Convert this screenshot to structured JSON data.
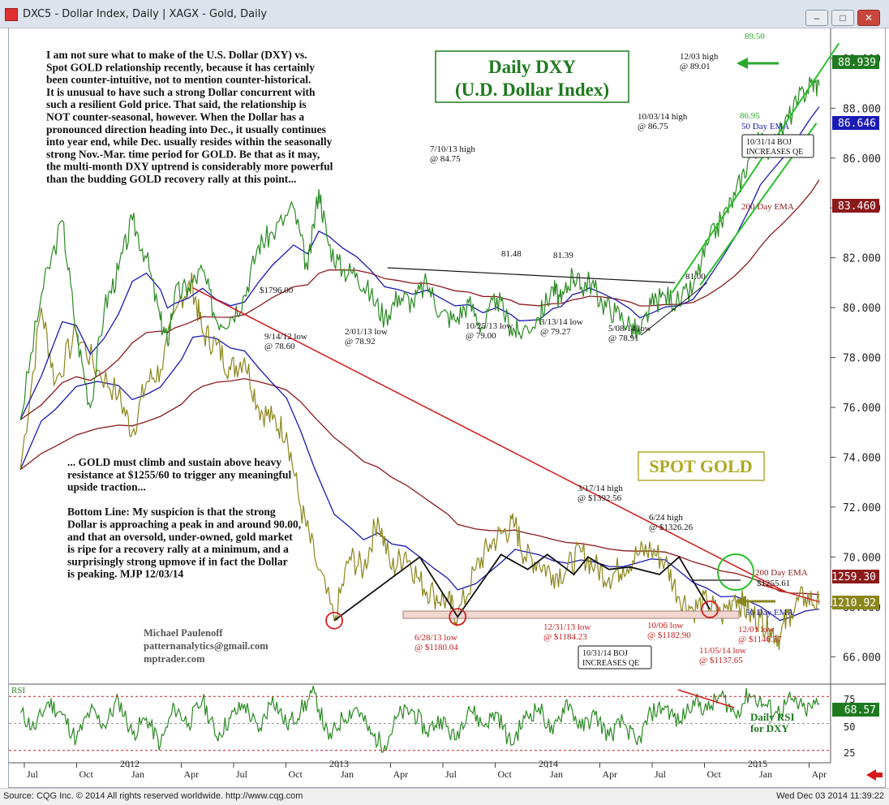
{
  "window": {
    "title": "DXC5 - Dollar Index, Daily   |   XAGX - Gold, Daily",
    "controls": [
      "min",
      "max",
      "close"
    ]
  },
  "commentary": {
    "top": [
      "I am not sure what to make of the U.S. Dollar (DXY) vs.",
      "Spot GOLD relationship recently, because it has certainly",
      "been counter-intuitive, not to mention counter-historical.",
      "It is unusual to have such a strong Dollar concurrent with",
      "such a resilient Gold price. That said, the relationship is",
      "NOT counter-seasonal, however. When the Dollar has a",
      "pronounced direction heading into Dec., it usually continues",
      "into year end, while Dec. usually resides within the seasonally",
      "strong Nov.-Mar. time period for GOLD. Be that as it may,",
      "the multi-month DXY uptrend is considerably more powerful",
      "than the budding GOLD recovery rally at this point..."
    ],
    "bottom": [
      "... GOLD must climb and sustain above heavy",
      "resistance at $1255/60 to trigger any meaningful",
      "upside traction...",
      "",
      "Bottom Line: My suspicion is that the strong",
      "Dollar is approaching a peak in and around 90.00,",
      "and that an oversold, under-owned, gold market",
      "is ripe for a recovery rally at a minimum, and a",
      "surprisingly strong upmove if in fact the Dollar",
      "is peaking.  MJP 12/03/14"
    ],
    "author": [
      "Michael Paulenoff",
      "patternanalytics@gmail.com",
      "mptrader.com"
    ]
  },
  "chart_data": {
    "type": "line",
    "y_axis_ticks": [
      66,
      68,
      70,
      72,
      74,
      76,
      78,
      80,
      82,
      84,
      86,
      88,
      90
    ],
    "y_tick_labels": [
      "66.000",
      "68.000",
      "70.000",
      "72.000",
      "74.000",
      "76.000",
      "78.000",
      "80.000",
      "82.000",
      "84.000",
      "86.000",
      "88.000",
      "90.000"
    ],
    "ylim": [
      65,
      91.2
    ],
    "x_months": [
      "Jul",
      "Oct",
      "Jan",
      "Apr",
      "Jul",
      "Oct",
      "Jan",
      "Apr",
      "Jul",
      "Oct",
      "Jan",
      "Apr",
      "Jul",
      "Oct",
      "Jan",
      "Apr"
    ],
    "x_years": [
      "2012",
      "2013",
      "2014",
      "2015"
    ],
    "dxy": {
      "name": "Daily DXY",
      "title_lines": [
        "Daily DXY",
        "(U.D. Dollar Index)"
      ],
      "color": "#2a8a22",
      "points": [
        [
          0,
          75.5
        ],
        [
          1.5,
          80.5
        ],
        [
          3,
          83.5
        ],
        [
          4,
          79
        ],
        [
          5,
          76
        ],
        [
          6,
          80
        ],
        [
          7,
          81.5
        ],
        [
          8,
          83.5
        ],
        [
          9,
          82
        ],
        [
          10,
          79.5
        ],
        [
          10.5,
          78.6
        ],
        [
          11,
          80.5
        ],
        [
          12,
          80.8
        ],
        [
          13,
          81.5
        ],
        [
          14,
          79.5
        ],
        [
          15,
          79.6
        ],
        [
          16,
          80.5
        ],
        [
          17,
          82.5
        ],
        [
          18,
          83
        ],
        [
          19.5,
          84
        ],
        [
          20.5,
          81.5
        ],
        [
          21.3,
          84.75
        ],
        [
          22,
          82.5
        ],
        [
          23,
          81.5
        ],
        [
          24,
          81.4
        ],
        [
          25,
          80.5
        ],
        [
          26,
          79.6
        ],
        [
          27,
          80.5
        ],
        [
          28,
          80.2
        ],
        [
          29,
          81
        ],
        [
          30,
          79.8
        ],
        [
          31,
          79.5
        ],
        [
          32,
          80.2
        ],
        [
          33,
          79.2
        ],
        [
          34,
          80.4
        ],
        [
          35,
          79.2
        ],
        [
          35.6,
          79.0
        ],
        [
          37,
          79.6
        ],
        [
          38,
          80.8
        ],
        [
          38.6,
          80.2
        ],
        [
          39.4,
          81.4
        ],
        [
          40,
          80.8
        ],
        [
          40.6,
          81.1
        ],
        [
          41.5,
          80.2
        ],
        [
          42.5,
          79.8
        ],
        [
          43.5,
          79.3
        ],
        [
          44.2,
          78.91
        ],
        [
          45,
          80.1
        ],
        [
          46,
          80.5
        ],
        [
          47,
          80.2
        ],
        [
          48,
          80.8
        ],
        [
          49,
          82.5
        ],
        [
          50,
          83.5
        ],
        [
          51,
          84.5
        ],
        [
          52,
          86
        ],
        [
          52.8,
          86.75
        ],
        [
          53.5,
          86.3
        ],
        [
          54.5,
          87.3
        ],
        [
          55.5,
          88.3
        ],
        [
          56.4,
          89.01
        ],
        [
          57,
          88.9
        ]
      ],
      "ema50": {
        "label": "50 Day EMA",
        "value": "86.646",
        "color": "#1a1ab4"
      },
      "ema200": {
        "label": "200 Day EMA",
        "value": "83.460",
        "color": "#8b1a1a"
      },
      "last": {
        "value": "88.939",
        "color": "#1f7a1f"
      },
      "channel_labels": [
        "89.50",
        "86.95"
      ],
      "annotations": [
        {
          "text": "12/03 high",
          "sub": "@ 89.01"
        },
        {
          "text": "10/03/14 high",
          "sub": "@ 86.75"
        },
        {
          "text": "7/10/13 high",
          "sub": "@ 84.75"
        },
        {
          "text": "81.48"
        },
        {
          "text": "81.39"
        },
        {
          "text": "81.00"
        },
        {
          "text": "10/25/13 low",
          "sub": "@ 79.00"
        },
        {
          "text": "3/13/14 low",
          "sub": "@ 79.27"
        },
        {
          "text": "5/08/14 low",
          "sub": "@ 78.91"
        },
        {
          "text": "2/01/13 low",
          "sub": "@ 78.92"
        },
        {
          "text": "9/14/12 low",
          "sub": "@ 78.60"
        },
        {
          "text": "10/31/14 BOJ",
          "sub": "INCREASES QE"
        }
      ]
    },
    "gold": {
      "name": "SPOT GOLD",
      "color": "#8a861c",
      "points": [
        [
          0,
          73.5
        ],
        [
          1.5,
          80
        ],
        [
          2.5,
          77
        ],
        [
          4,
          79
        ],
        [
          5.5,
          77.5
        ],
        [
          7,
          76.5
        ],
        [
          8,
          75
        ],
        [
          9,
          77
        ],
        [
          10,
          77.5
        ],
        [
          11.5,
          80.5
        ],
        [
          12.3,
          80.9
        ],
        [
          13,
          79
        ],
        [
          14,
          78.5
        ],
        [
          15,
          77.5
        ],
        [
          16,
          78
        ],
        [
          17,
          76
        ],
        [
          18,
          75.5
        ],
        [
          19,
          75
        ],
        [
          20,
          72
        ],
        [
          21,
          70
        ],
        [
          22.4,
          67.45
        ],
        [
          23.5,
          70
        ],
        [
          24.5,
          69.5
        ],
        [
          25.5,
          71.6
        ],
        [
          26.5,
          69.5
        ],
        [
          27.5,
          70.2
        ],
        [
          28.5,
          69
        ],
        [
          29.5,
          68.5
        ],
        [
          30.5,
          68.2
        ],
        [
          31.2,
          67.6
        ],
        [
          32.5,
          69.5
        ],
        [
          33.5,
          70.5
        ],
        [
          34.5,
          71
        ],
        [
          35.3,
          71.3
        ],
        [
          36,
          70
        ],
        [
          37,
          69.8
        ],
        [
          38,
          69.3
        ],
        [
          39,
          69.5
        ],
        [
          40,
          70.2
        ],
        [
          41,
          69.6
        ],
        [
          42,
          69.2
        ],
        [
          43,
          69.6
        ],
        [
          44,
          70.1
        ],
        [
          45,
          70.3
        ],
        [
          46,
          69.8
        ],
        [
          47,
          68.4
        ],
        [
          48,
          67.9
        ],
        [
          49,
          68.2
        ],
        [
          50,
          67.6
        ],
        [
          51,
          68.5
        ],
        [
          52,
          67.7
        ],
        [
          52.8,
          67.55
        ],
        [
          53.5,
          67.1
        ],
        [
          54.2,
          66.8
        ],
        [
          55,
          67.9
        ],
        [
          56,
          68.4
        ],
        [
          57,
          68.1
        ]
      ],
      "ema50": {
        "label": "50 Day EMA",
        "value": "1210.92",
        "color": "#1a1ab4"
      },
      "ema200": {
        "label": "200 Day EMA",
        "value": "1259.30",
        "color": "#8b1a1a"
      },
      "resistance": {
        "label": "$1255.61"
      },
      "annotations": [
        {
          "text": "3/17/14 high",
          "sub": "@ $1392.56"
        },
        {
          "text": "6/24 high",
          "sub": "@ $1326.26"
        },
        {
          "text": "$1796.00"
        },
        {
          "text": "6/28/13 low",
          "sub": "@ $1180.04"
        },
        {
          "text": "12/31/13 low",
          "sub": "@ $1184.23"
        },
        {
          "text": "10/06 low",
          "sub": "@ $1182.90"
        },
        {
          "text": "12/01 low",
          "sub": "@ $1146.57"
        },
        {
          "text": "11/05/14 low",
          "sub": "@ $1137.65"
        },
        {
          "text": "10/31/14 BOJ",
          "sub": "INCREASES QE"
        }
      ]
    },
    "rsi": {
      "label": "RSI",
      "caption": [
        "Daily RSI",
        "for DXY"
      ],
      "levels": [
        25,
        50,
        75
      ],
      "value": "68.57",
      "color": "#2a8a22",
      "points": [
        [
          0,
          60
        ],
        [
          1,
          45
        ],
        [
          2,
          70
        ],
        [
          3,
          58
        ],
        [
          4,
          35
        ],
        [
          5,
          62
        ],
        [
          6,
          48
        ],
        [
          7,
          72
        ],
        [
          8,
          40
        ],
        [
          9,
          55
        ],
        [
          10,
          30
        ],
        [
          11,
          65
        ],
        [
          12,
          50
        ],
        [
          13,
          72
        ],
        [
          14,
          38
        ],
        [
          15,
          55
        ],
        [
          16,
          68
        ],
        [
          17,
          42
        ],
        [
          18,
          75
        ],
        [
          19,
          48
        ],
        [
          20,
          62
        ],
        [
          21,
          78
        ],
        [
          22,
          35
        ],
        [
          23,
          55
        ],
        [
          24,
          65
        ],
        [
          25,
          40
        ],
        [
          26,
          30
        ],
        [
          27,
          58
        ],
        [
          28,
          62
        ],
        [
          29,
          42
        ],
        [
          30,
          55
        ],
        [
          31,
          35
        ],
        [
          32,
          66
        ],
        [
          33,
          48
        ],
        [
          34,
          60
        ],
        [
          35,
          30
        ],
        [
          36,
          55
        ],
        [
          37,
          65
        ],
        [
          38,
          40
        ],
        [
          39,
          72
        ],
        [
          40,
          45
        ],
        [
          41,
          58
        ],
        [
          42,
          38
        ],
        [
          43,
          52
        ],
        [
          44,
          30
        ],
        [
          45,
          60
        ],
        [
          46,
          66
        ],
        [
          47,
          50
        ],
        [
          48,
          72
        ],
        [
          49,
          62
        ],
        [
          50,
          76
        ],
        [
          51,
          58
        ],
        [
          52,
          78
        ],
        [
          53,
          68
        ],
        [
          54,
          60
        ],
        [
          55,
          72
        ],
        [
          56,
          62
        ],
        [
          57,
          68.57
        ]
      ]
    }
  },
  "footer": {
    "source": "Source: CQG Inc. © 2014 All rights reserved worldwide. http://www.cqg.com",
    "timestamp": "Wed Dec 03 2014 11:39:22"
  }
}
